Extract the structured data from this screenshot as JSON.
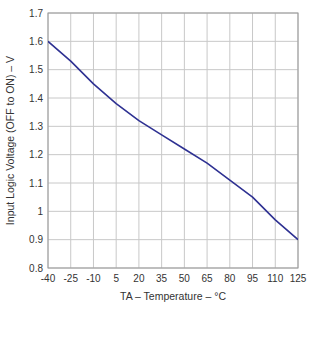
{
  "chart_data": {
    "type": "line",
    "x_label": "TA – Temperature – °C",
    "y_label": "Input Logic Voltage (OFF to ON) – V",
    "x": [
      -40,
      -25,
      -10,
      5,
      20,
      35,
      50,
      65,
      80,
      95,
      110,
      125
    ],
    "values": [
      1.6,
      1.53,
      1.45,
      1.38,
      1.32,
      1.27,
      1.22,
      1.17,
      1.11,
      1.05,
      0.97,
      0.9
    ],
    "color": "#2e3192",
    "xlim": [
      -40,
      125
    ],
    "xticks": [
      -40,
      -25,
      -10,
      5,
      20,
      35,
      50,
      65,
      80,
      95,
      110,
      125
    ],
    "ylim": [
      0.8,
      1.7
    ],
    "yticks": [
      0.8,
      0.9,
      1,
      1.1,
      1.2,
      1.3,
      1.4,
      1.5,
      1.6,
      1.7
    ],
    "grid": true
  }
}
